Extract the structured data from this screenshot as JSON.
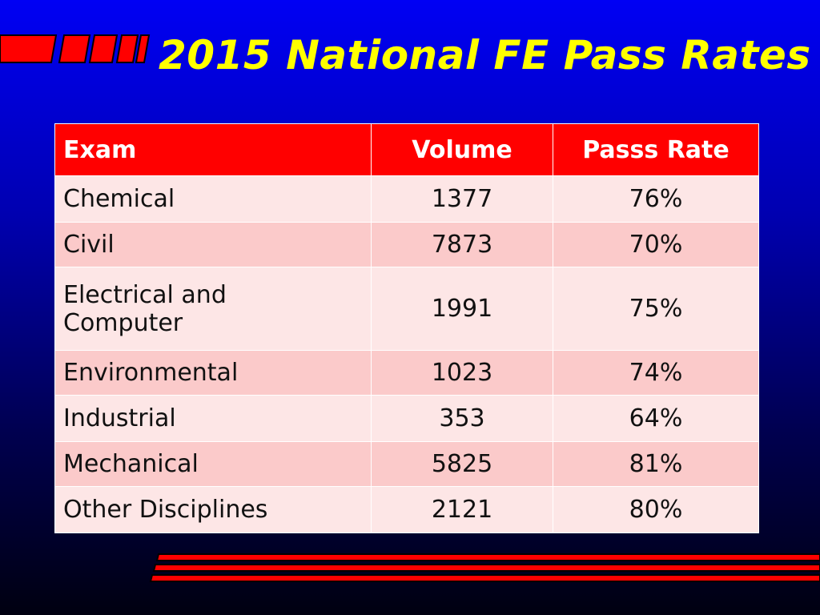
{
  "header": {
    "title": "2015 National FE Pass Rates"
  },
  "table": {
    "columns": [
      "Exam",
      "Volume",
      "Passs Rate"
    ],
    "rows": [
      [
        "Chemical",
        "1377",
        "76%"
      ],
      [
        "Civil",
        "7873",
        "70%"
      ],
      [
        "Electrical and Computer",
        "1991",
        "75%"
      ],
      [
        "Environmental",
        "1023",
        "74%"
      ],
      [
        "Industrial",
        "353",
        "64%"
      ],
      [
        "Mechanical",
        "5825",
        "81%"
      ],
      [
        "Other Disciplines",
        "2121",
        "80%"
      ]
    ]
  }
}
